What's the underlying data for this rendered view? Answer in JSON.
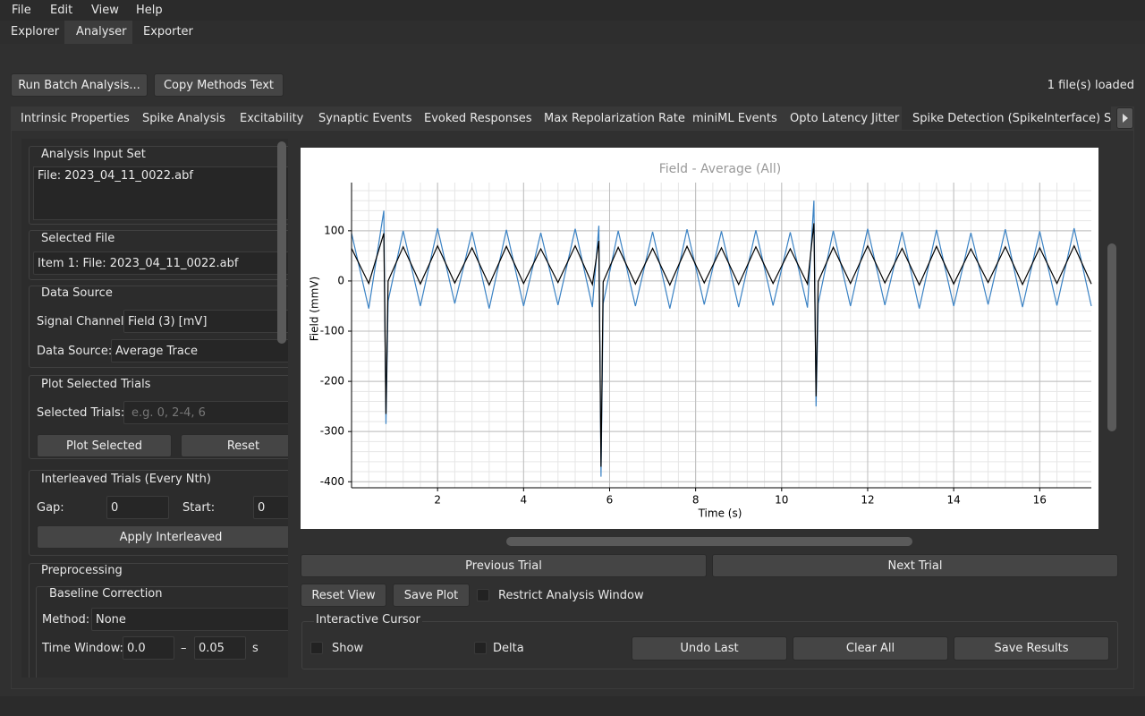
{
  "menu": [
    "File",
    "Edit",
    "View",
    "Help"
  ],
  "main_tabs": [
    "Explorer",
    "Analyser",
    "Exporter"
  ],
  "toolbar": {
    "run_batch": "Run Batch Analysis...",
    "copy_methods": "Copy Methods Text",
    "status": "1 file(s) loaded"
  },
  "analysis_tabs": [
    "Intrinsic Properties",
    "Spike Analysis",
    "Excitability",
    "Synaptic Events",
    "Evoked Responses",
    "Max Repolarization Rate",
    "miniML Events",
    "Opto Latency Jitter",
    "Spike Detection (SpikeInterface)",
    "S"
  ],
  "left_panel": {
    "analysis_input_set": {
      "title": "Analysis Input Set",
      "items": [
        "File: 2023_04_11_0022.abf"
      ]
    },
    "selected_file": {
      "title": "Selected File",
      "value": "Item 1: File: 2023_04_11_0022.abf"
    },
    "data_source": {
      "title": "Data Source",
      "signal_channel_label": "Signal Channel:",
      "signal_channel": "Field (3) [mV]",
      "data_source_label": "Data Source:",
      "data_source": "Average Trace"
    },
    "plot_selected_trials": {
      "title": "Plot Selected Trials",
      "selected_trials_label": "Selected Trials:",
      "placeholder": "e.g. 0, 2-4, 6",
      "plot_button": "Plot Selected",
      "reset_button": "Reset"
    },
    "interleaved": {
      "title": "Interleaved Trials (Every Nth)",
      "gap_label": "Gap:",
      "gap": "0",
      "start_label": "Start:",
      "start": "0",
      "apply_button": "Apply Interleaved"
    },
    "preprocessing": {
      "title": "Preprocessing",
      "baseline_title": "Baseline Correction",
      "method_label": "Method:",
      "method": "None",
      "time_window_label": "Time Window:",
      "window_start": "0.0",
      "separator": "–",
      "window_end": "0.05",
      "unit": "s"
    }
  },
  "plot_controls": {
    "previous": "Previous Trial",
    "next": "Next Trial",
    "reset_view": "Reset View",
    "save_plot": "Save Plot",
    "restrict": "Restrict Analysis Window"
  },
  "cursor": {
    "title": "Interactive Cursor",
    "show": "Show",
    "delta": "Delta",
    "undo": "Undo Last",
    "clear": "Clear All",
    "save": "Save Results"
  },
  "chart_data": {
    "type": "line",
    "title": "Field - Average (All)",
    "x_label": "Time (s)",
    "y_label": "Field (mmV)",
    "x": [
      0,
      0.4,
      0.75,
      0.8,
      0.85,
      1.2,
      1.6,
      2,
      2.4,
      2.8,
      3.2,
      3.6,
      4,
      4.4,
      4.8,
      5.2,
      5.6,
      5.75,
      5.8,
      5.85,
      6.2,
      6.6,
      7,
      7.4,
      7.8,
      8.2,
      8.6,
      9,
      9.4,
      9.8,
      10.2,
      10.6,
      10.75,
      10.8,
      10.85,
      11.2,
      11.6,
      12,
      12.4,
      12.8,
      13.2,
      13.6,
      14,
      14.4,
      14.8,
      15.2,
      15.6,
      16,
      16.4,
      16.8,
      17.2
    ],
    "series": [
      {
        "color": "#3a82c4",
        "values": [
          95,
          -55,
          140,
          -285,
          -40,
          100,
          -50,
          105,
          -45,
          98,
          -55,
          102,
          -50,
          96,
          -48,
          104,
          -52,
          110,
          -390,
          -45,
          100,
          -50,
          98,
          -55,
          103,
          -47,
          99,
          -52,
          101,
          -49,
          97,
          -53,
          160,
          -250,
          -45,
          100,
          -50,
          104,
          -48,
          98,
          -55,
          102,
          -50,
          96,
          -47,
          103,
          -52,
          99,
          -49,
          105,
          -50
        ]
      },
      {
        "color": "#000000",
        "values": [
          65,
          -5,
          95,
          -265,
          0,
          68,
          -6,
          70,
          -4,
          66,
          -8,
          69,
          -5,
          64,
          -3,
          70,
          -7,
          80,
          -370,
          -2,
          67,
          -6,
          65,
          -8,
          69,
          -4,
          66,
          -7,
          68,
          -5,
          64,
          -6,
          115,
          -230,
          -1,
          67,
          -5,
          70,
          -4,
          65,
          -8,
          69,
          -6,
          64,
          -3,
          68,
          -7,
          66,
          -5,
          70,
          -6
        ]
      }
    ],
    "xlim": [
      0,
      17.2
    ],
    "ylim": [
      -412,
      196
    ],
    "xticks": [
      2,
      4,
      6,
      8,
      10,
      12,
      14,
      16
    ],
    "yticks": [
      -400,
      -300,
      -200,
      -100,
      0,
      100
    ],
    "grid": true,
    "minor_grid": true
  }
}
